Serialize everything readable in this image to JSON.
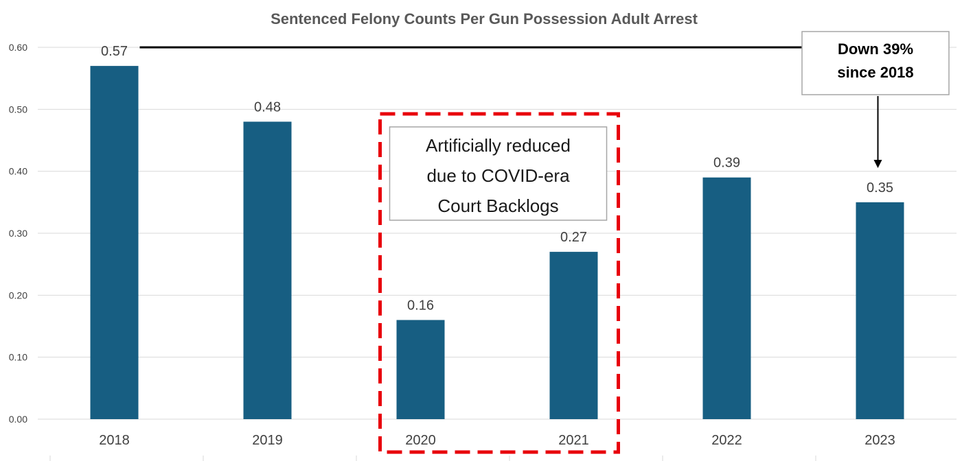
{
  "chart_data": {
    "type": "bar",
    "title": "Sentenced Felony Counts Per Gun Possession Adult Arrest",
    "xlabel": "",
    "ylabel": "",
    "categories": [
      "2018",
      "2019",
      "2020",
      "2021",
      "2022",
      "2023"
    ],
    "values": [
      0.57,
      0.48,
      0.16,
      0.27,
      0.39,
      0.35
    ],
    "data_labels": [
      "0.57",
      "0.48",
      "0.16",
      "0.27",
      "0.39",
      "0.35"
    ],
    "ylim": [
      0,
      0.6
    ],
    "yticks": [
      "0.00",
      "0.10",
      "0.20",
      "0.30",
      "0.40",
      "0.50",
      "0.60"
    ],
    "grid": true,
    "bar_color": "#175E82",
    "annotations": {
      "covid_box": {
        "lines": [
          "Artificially reduced",
          "due to COVID-era",
          "Court Backlogs"
        ],
        "spans_categories": [
          "2020",
          "2021"
        ],
        "border_color": "#E8000B"
      },
      "callout": {
        "lines": [
          "Down 39%",
          "since 2018"
        ],
        "reference_value": 0.57,
        "points_to": "2023"
      }
    }
  }
}
